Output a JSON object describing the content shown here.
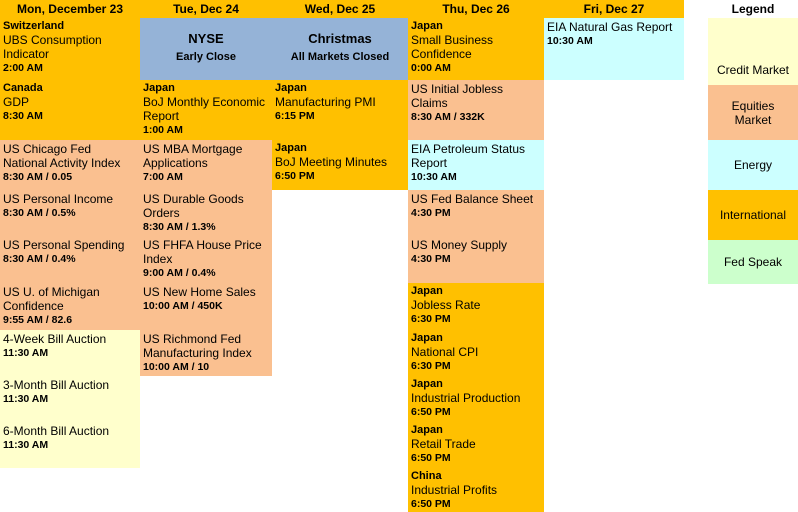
{
  "colors": {
    "header": "#FFC000",
    "international": "#FFC000",
    "equities": "#FAC090",
    "credit": "#FFFFCC",
    "energy": "#CCFFFF",
    "fed_speak": "#CCFFCC",
    "closed": "#95B3D7"
  },
  "columns": [
    {
      "header": "Mon, December 23",
      "events": [
        {
          "country": "Switzerland",
          "title": "UBS Consumption Indicator",
          "time": "2:00 AM",
          "category": "international"
        },
        {
          "country": "Canada",
          "title": "GDP",
          "time": "8:30 AM",
          "category": "international"
        },
        {
          "title": "US Chicago Fed National Activity Index",
          "time": "8:30 AM / 0.05",
          "category": "equities"
        },
        {
          "title": "US Personal Income",
          "time": "8:30 AM / 0.5%",
          "category": "equities"
        },
        {
          "title": "US Personal Spending",
          "time": "8:30 AM / 0.4%",
          "category": "equities"
        },
        {
          "title": "US U. of Michigan Confidence",
          "time": "9:55 AM / 82.6",
          "category": "equities"
        },
        {
          "title": "4-Week Bill Auction",
          "time": "11:30 AM",
          "category": "credit"
        },
        {
          "title": "3-Month Bill Auction",
          "time": "11:30 AM",
          "category": "credit"
        },
        {
          "title": "6-Month Bill Auction",
          "time": "11:30 AM",
          "category": "credit"
        }
      ]
    },
    {
      "header": "Tue, Dec 24",
      "events": [
        {
          "special": true,
          "title": "NYSE",
          "subtitle": "Early Close",
          "category": "closed"
        },
        {
          "country": "Japan",
          "title": "BoJ Monthly Economic Report",
          "time": "1:00 AM",
          "category": "international"
        },
        {
          "title": "US MBA Mortgage Applications",
          "time": "7:00 AM",
          "category": "equities"
        },
        {
          "title": "US Durable Goods Orders",
          "time": "8:30 AM / 1.3%",
          "category": "equities"
        },
        {
          "title": "US FHFA House Price Index",
          "time": "9:00 AM / 0.4%",
          "category": "equities"
        },
        {
          "title": "US New Home Sales",
          "time": "10:00 AM / 450K",
          "category": "equities"
        },
        {
          "title": "US Richmond Fed Manufacturing Index",
          "time": "10:00 AM / 10",
          "category": "equities"
        }
      ]
    },
    {
      "header": "Wed, Dec 25",
      "events": [
        {
          "special": true,
          "title": "Christmas",
          "subtitle": "All Markets Closed",
          "category": "closed"
        },
        {
          "country": "Japan",
          "title": "Manufacturing PMI",
          "time": "6:15 PM",
          "category": "international"
        },
        {
          "country": "Japan",
          "title": "BoJ Meeting Minutes",
          "time": "6:50 PM",
          "category": "international"
        }
      ]
    },
    {
      "header": "Thu, Dec 26",
      "events": [
        {
          "country": "Japan",
          "title": "Small Business Confidence",
          "time": "0:00 AM",
          "category": "international"
        },
        {
          "title": "US Initial Jobless Claims",
          "time": "8:30 AM / 332K",
          "category": "equities"
        },
        {
          "title": "EIA Petroleum Status Report",
          "time": "10:30 AM",
          "category": "energy"
        },
        {
          "title": "US Fed Balance Sheet",
          "time": "4:30 PM",
          "category": "equities"
        },
        {
          "title": "US Money Supply",
          "time": "4:30 PM",
          "category": "equities"
        },
        {
          "country": "Japan",
          "title": "Jobless Rate",
          "time": "6:30 PM",
          "category": "international"
        },
        {
          "country": "Japan",
          "title": "National CPI",
          "time": "6:30 PM",
          "category": "international"
        },
        {
          "country": "Japan",
          "title": "Industrial Production",
          "time": "6:50 PM",
          "category": "international"
        },
        {
          "country": "Japan",
          "title": "Retail Trade",
          "time": "6:50 PM",
          "category": "international"
        },
        {
          "country": "China",
          "title": "Industrial Profits",
          "time": "6:50 PM",
          "category": "international"
        }
      ]
    },
    {
      "header": "Fri, Dec 27",
      "events": [
        {
          "title": "EIA Natural Gas Report",
          "time": "10:30 AM",
          "category": "energy"
        }
      ]
    }
  ],
  "legend": {
    "title": "Legend",
    "items": [
      {
        "label": "Credit Market",
        "category": "credit"
      },
      {
        "label": "Equities Market",
        "category": "equities"
      },
      {
        "label": "Energy",
        "category": "energy"
      },
      {
        "label": "International",
        "category": "international"
      },
      {
        "label": "Fed Speak",
        "category": "fed_speak"
      }
    ]
  }
}
